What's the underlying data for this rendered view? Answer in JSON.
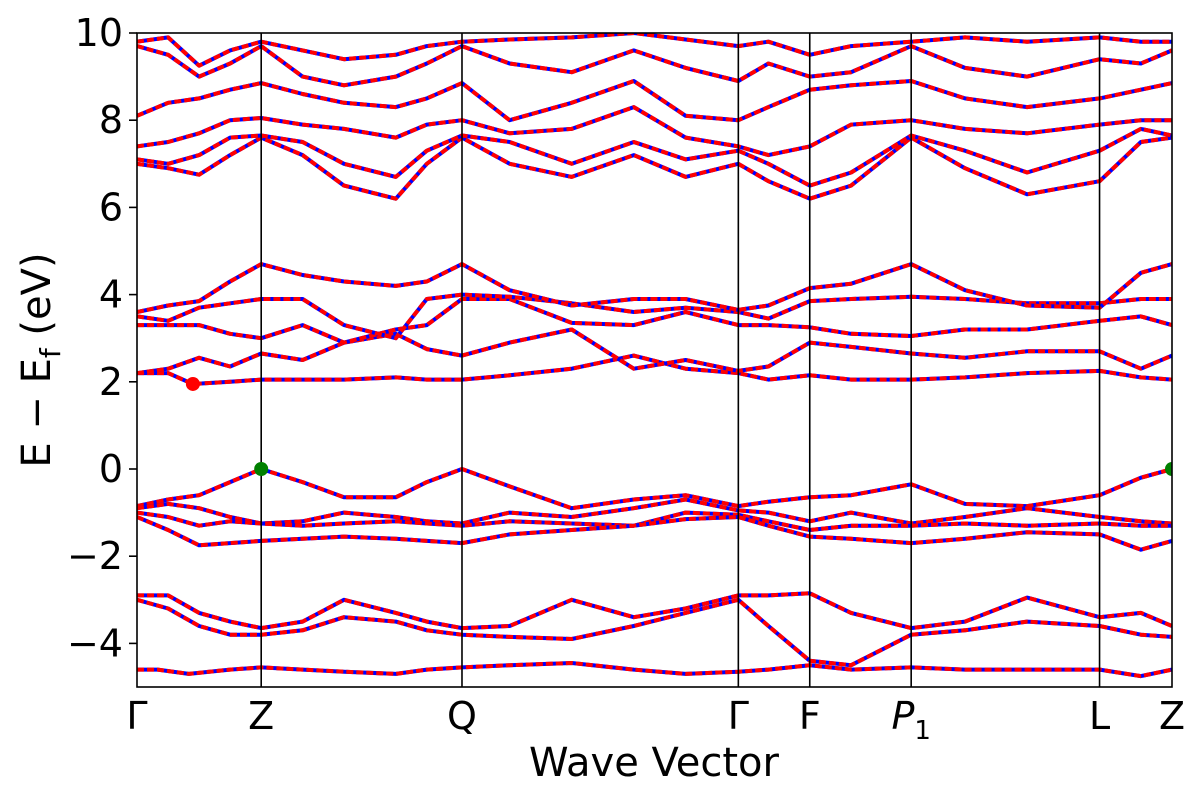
{
  "chart_data": {
    "type": "line",
    "title": "",
    "xlabel": "Wave Vector",
    "ylabel": "E − E_f (eV)",
    "ylabel_main": "E  −  E",
    "ylabel_sub": "f",
    "ylabel_tail": " (eV)",
    "ylim": [
      -5,
      10
    ],
    "yticks": [
      -4,
      -2,
      0,
      2,
      4,
      6,
      8,
      10
    ],
    "ytick_labels": [
      "−4",
      "−2",
      "0",
      "2",
      "4",
      "6",
      "8",
      "10"
    ],
    "high_symmetry_points": [
      {
        "label": "Γ",
        "sub": "",
        "k": 0.0
      },
      {
        "label": "Z",
        "sub": "",
        "k": 0.12
      },
      {
        "label": "Q",
        "sub": "",
        "k": 0.314
      },
      {
        "label": "Γ",
        "sub": "",
        "k": 0.581
      },
      {
        "label": "F",
        "sub": "",
        "k": 0.65
      },
      {
        "label": "P",
        "sub": "1",
        "k": 0.748
      },
      {
        "label": "L",
        "sub": "",
        "k": 0.93
      },
      {
        "label": "Z",
        "sub": "",
        "k": 1.0
      }
    ],
    "line_styles": {
      "band_color": "#ff0000",
      "overlay_color": "#0000ff"
    },
    "markers": [
      {
        "name": "CBM",
        "k": 0.054,
        "e": 1.95,
        "color": "#ff0000"
      },
      {
        "name": "VBM",
        "k": 0.12,
        "e": 0.0,
        "color": "#008000"
      },
      {
        "name": "VBM",
        "k": 1.0,
        "e": 0.0,
        "color": "#008000"
      }
    ],
    "bands": [
      {
        "k": [
          0.0,
          0.02,
          0.05,
          0.09,
          0.12,
          0.16,
          0.2,
          0.25,
          0.28,
          0.314,
          0.36,
          0.42,
          0.48,
          0.53,
          0.581,
          0.61,
          0.65,
          0.69,
          0.748,
          0.8,
          0.86,
          0.93,
          0.97,
          1.0
        ],
        "e": [
          -4.6,
          -4.6,
          -4.7,
          -4.6,
          -4.55,
          -4.6,
          -4.65,
          -4.7,
          -4.6,
          -4.55,
          -4.5,
          -4.45,
          -4.6,
          -4.7,
          -4.65,
          -4.6,
          -4.5,
          -4.6,
          -4.55,
          -4.6,
          -4.6,
          -4.6,
          -4.75,
          -4.6
        ]
      },
      {
        "k": [
          0.0,
          0.03,
          0.06,
          0.09,
          0.12,
          0.16,
          0.2,
          0.25,
          0.28,
          0.314,
          0.36,
          0.42,
          0.48,
          0.53,
          0.581,
          0.61,
          0.65,
          0.69,
          0.748,
          0.8,
          0.86,
          0.93,
          0.97,
          1.0
        ],
        "e": [
          -2.9,
          -2.9,
          -3.3,
          -3.5,
          -3.65,
          -3.5,
          -3.0,
          -3.3,
          -3.5,
          -3.65,
          -3.6,
          -3.0,
          -3.4,
          -3.2,
          -2.9,
          -2.9,
          -2.85,
          -3.3,
          -3.65,
          -3.5,
          -2.95,
          -3.4,
          -3.3,
          -3.6
        ]
      },
      {
        "k": [
          0.0,
          0.03,
          0.06,
          0.09,
          0.12,
          0.16,
          0.2,
          0.25,
          0.28,
          0.314,
          0.36,
          0.42,
          0.48,
          0.53,
          0.581,
          0.61,
          0.65,
          0.69,
          0.748,
          0.8,
          0.86,
          0.93,
          0.97,
          1.0
        ],
        "e": [
          -3.0,
          -3.2,
          -3.6,
          -3.8,
          -3.8,
          -3.7,
          -3.4,
          -3.5,
          -3.7,
          -3.8,
          -3.85,
          -3.9,
          -3.6,
          -3.3,
          -3.0,
          -3.6,
          -4.4,
          -4.5,
          -3.8,
          -3.7,
          -3.5,
          -3.6,
          -3.8,
          -3.85
        ]
      },
      {
        "k": [
          0.0,
          0.03,
          0.06,
          0.09,
          0.12,
          0.16,
          0.2,
          0.25,
          0.28,
          0.314,
          0.36,
          0.42,
          0.48,
          0.53,
          0.581,
          0.61,
          0.65,
          0.69,
          0.748,
          0.8,
          0.86,
          0.93,
          0.97,
          1.0
        ],
        "e": [
          -0.85,
          -0.7,
          -0.6,
          -0.3,
          0.0,
          -0.3,
          -0.65,
          -0.65,
          -0.3,
          0.0,
          -0.4,
          -0.9,
          -0.7,
          -0.6,
          -0.85,
          -0.75,
          -0.65,
          -0.6,
          -0.35,
          -0.8,
          -0.85,
          -0.6,
          -0.2,
          0.0
        ]
      },
      {
        "k": [
          0.0,
          0.03,
          0.06,
          0.09,
          0.12,
          0.16,
          0.2,
          0.25,
          0.28,
          0.314,
          0.36,
          0.42,
          0.48,
          0.53,
          0.581,
          0.61,
          0.65,
          0.69,
          0.748,
          0.8,
          0.86,
          0.93,
          0.97,
          1.0
        ],
        "e": [
          -0.9,
          -0.8,
          -0.9,
          -1.1,
          -1.25,
          -1.2,
          -1.0,
          -1.1,
          -1.2,
          -1.25,
          -1.0,
          -1.1,
          -0.9,
          -0.7,
          -0.95,
          -1.0,
          -1.2,
          -1.0,
          -1.25,
          -1.1,
          -0.9,
          -1.1,
          -1.2,
          -1.25
        ]
      },
      {
        "k": [
          0.0,
          0.03,
          0.06,
          0.09,
          0.12,
          0.16,
          0.2,
          0.25,
          0.28,
          0.314,
          0.36,
          0.42,
          0.48,
          0.53,
          0.581,
          0.61,
          0.65,
          0.69,
          0.748,
          0.8,
          0.86,
          0.93,
          0.97,
          1.0
        ],
        "e": [
          -1.0,
          -1.1,
          -1.3,
          -1.2,
          -1.25,
          -1.3,
          -1.25,
          -1.2,
          -1.25,
          -1.3,
          -1.2,
          -1.25,
          -1.3,
          -1.0,
          -1.05,
          -1.2,
          -1.4,
          -1.3,
          -1.3,
          -1.25,
          -1.3,
          -1.25,
          -1.3,
          -1.3
        ]
      },
      {
        "k": [
          0.0,
          0.03,
          0.06,
          0.09,
          0.12,
          0.16,
          0.2,
          0.25,
          0.28,
          0.314,
          0.36,
          0.42,
          0.48,
          0.53,
          0.581,
          0.61,
          0.65,
          0.69,
          0.748,
          0.8,
          0.86,
          0.93,
          0.97,
          1.0
        ],
        "e": [
          -1.1,
          -1.4,
          -1.75,
          -1.7,
          -1.65,
          -1.6,
          -1.55,
          -1.6,
          -1.65,
          -1.7,
          -1.5,
          -1.4,
          -1.3,
          -1.15,
          -1.1,
          -1.3,
          -1.55,
          -1.6,
          -1.7,
          -1.6,
          -1.45,
          -1.5,
          -1.85,
          -1.65
        ]
      },
      {
        "k": [
          0.0,
          0.03,
          0.054,
          0.09,
          0.12,
          0.16,
          0.2,
          0.25,
          0.28,
          0.314,
          0.36,
          0.42,
          0.48,
          0.53,
          0.581,
          0.61,
          0.65,
          0.69,
          0.748,
          0.8,
          0.86,
          0.93,
          0.97,
          1.0
        ],
        "e": [
          2.2,
          2.2,
          1.95,
          2.0,
          2.05,
          2.05,
          2.05,
          2.1,
          2.05,
          2.05,
          2.15,
          2.3,
          2.6,
          2.3,
          2.2,
          2.05,
          2.15,
          2.05,
          2.05,
          2.1,
          2.2,
          2.25,
          2.1,
          2.05
        ]
      },
      {
        "k": [
          0.0,
          0.03,
          0.06,
          0.09,
          0.12,
          0.16,
          0.2,
          0.25,
          0.28,
          0.314,
          0.36,
          0.42,
          0.48,
          0.53,
          0.581,
          0.61,
          0.65,
          0.69,
          0.748,
          0.8,
          0.86,
          0.93,
          0.97,
          1.0
        ],
        "e": [
          2.2,
          2.3,
          2.55,
          2.35,
          2.65,
          2.5,
          2.9,
          3.1,
          2.75,
          2.6,
          2.9,
          3.2,
          2.3,
          2.5,
          2.25,
          2.35,
          2.9,
          2.8,
          2.65,
          2.55,
          2.7,
          2.7,
          2.3,
          2.6
        ]
      },
      {
        "k": [
          0.0,
          0.03,
          0.06,
          0.09,
          0.12,
          0.16,
          0.2,
          0.25,
          0.28,
          0.314,
          0.36,
          0.42,
          0.48,
          0.53,
          0.581,
          0.61,
          0.65,
          0.69,
          0.748,
          0.8,
          0.86,
          0.93,
          0.97,
          1.0
        ],
        "e": [
          3.3,
          3.3,
          3.3,
          3.1,
          3.0,
          3.3,
          2.9,
          3.2,
          3.3,
          3.9,
          3.9,
          3.35,
          3.3,
          3.6,
          3.3,
          3.3,
          3.25,
          3.1,
          3.05,
          3.2,
          3.2,
          3.4,
          3.5,
          3.3
        ]
      },
      {
        "k": [
          0.0,
          0.03,
          0.06,
          0.09,
          0.12,
          0.16,
          0.2,
          0.25,
          0.28,
          0.314,
          0.36,
          0.42,
          0.48,
          0.53,
          0.581,
          0.61,
          0.65,
          0.69,
          0.748,
          0.8,
          0.86,
          0.93,
          0.97,
          1.0
        ],
        "e": [
          3.5,
          3.4,
          3.7,
          3.8,
          3.9,
          3.9,
          3.3,
          3.0,
          3.9,
          4.0,
          3.95,
          3.8,
          3.6,
          3.7,
          3.6,
          3.45,
          3.85,
          3.9,
          3.95,
          3.9,
          3.8,
          3.8,
          3.9,
          3.9
        ]
      },
      {
        "k": [
          0.0,
          0.03,
          0.06,
          0.09,
          0.12,
          0.16,
          0.2,
          0.25,
          0.28,
          0.314,
          0.36,
          0.42,
          0.48,
          0.53,
          0.581,
          0.61,
          0.65,
          0.69,
          0.748,
          0.8,
          0.86,
          0.93,
          0.97,
          1.0
        ],
        "e": [
          3.6,
          3.75,
          3.85,
          4.3,
          4.7,
          4.45,
          4.3,
          4.2,
          4.3,
          4.7,
          4.1,
          3.75,
          3.9,
          3.9,
          3.65,
          3.75,
          4.15,
          4.25,
          4.7,
          4.1,
          3.75,
          3.7,
          4.5,
          4.7
        ]
      },
      {
        "k": [
          0.0,
          0.03,
          0.06,
          0.09,
          0.12,
          0.16,
          0.2,
          0.25,
          0.28,
          0.314,
          0.36,
          0.42,
          0.48,
          0.53,
          0.581,
          0.61,
          0.65,
          0.69,
          0.748,
          0.8,
          0.86,
          0.93,
          0.97,
          1.0
        ],
        "e": [
          7.0,
          6.9,
          6.75,
          7.2,
          7.6,
          7.2,
          6.5,
          6.2,
          7.0,
          7.6,
          7.0,
          6.7,
          7.2,
          6.7,
          7.0,
          6.6,
          6.2,
          6.5,
          7.6,
          6.9,
          6.3,
          6.6,
          7.5,
          7.6
        ]
      },
      {
        "k": [
          0.0,
          0.03,
          0.06,
          0.09,
          0.12,
          0.16,
          0.2,
          0.25,
          0.28,
          0.314,
          0.36,
          0.42,
          0.48,
          0.53,
          0.581,
          0.61,
          0.65,
          0.69,
          0.748,
          0.8,
          0.86,
          0.93,
          0.97,
          1.0
        ],
        "e": [
          7.1,
          7.0,
          7.2,
          7.6,
          7.65,
          7.5,
          7.0,
          6.7,
          7.3,
          7.65,
          7.5,
          7.0,
          7.5,
          7.1,
          7.3,
          7.0,
          6.5,
          6.8,
          7.65,
          7.3,
          6.8,
          7.3,
          7.8,
          7.65
        ]
      },
      {
        "k": [
          0.0,
          0.03,
          0.06,
          0.09,
          0.12,
          0.16,
          0.2,
          0.25,
          0.28,
          0.314,
          0.36,
          0.42,
          0.48,
          0.53,
          0.581,
          0.61,
          0.65,
          0.69,
          0.748,
          0.8,
          0.86,
          0.93,
          0.97,
          1.0
        ],
        "e": [
          7.4,
          7.5,
          7.7,
          8.0,
          8.05,
          7.9,
          7.8,
          7.6,
          7.9,
          8.0,
          7.7,
          7.8,
          8.3,
          7.6,
          7.4,
          7.2,
          7.4,
          7.9,
          8.0,
          7.8,
          7.7,
          7.9,
          8.0,
          8.0
        ]
      },
      {
        "k": [
          0.0,
          0.03,
          0.06,
          0.09,
          0.12,
          0.16,
          0.2,
          0.25,
          0.28,
          0.314,
          0.36,
          0.42,
          0.48,
          0.53,
          0.581,
          0.61,
          0.65,
          0.69,
          0.748,
          0.8,
          0.86,
          0.93,
          0.97,
          1.0
        ],
        "e": [
          8.1,
          8.4,
          8.5,
          8.7,
          8.85,
          8.6,
          8.4,
          8.3,
          8.5,
          8.85,
          8.0,
          8.4,
          8.9,
          8.1,
          8.0,
          8.3,
          8.7,
          8.8,
          8.9,
          8.5,
          8.3,
          8.5,
          8.7,
          8.85
        ]
      },
      {
        "k": [
          0.0,
          0.03,
          0.06,
          0.09,
          0.12,
          0.16,
          0.2,
          0.25,
          0.28,
          0.314,
          0.36,
          0.42,
          0.48,
          0.53,
          0.581,
          0.61,
          0.65,
          0.69,
          0.748,
          0.8,
          0.86,
          0.93,
          0.97,
          1.0
        ],
        "e": [
          9.7,
          9.5,
          9.0,
          9.3,
          9.7,
          9.0,
          8.8,
          9.0,
          9.3,
          9.7,
          9.3,
          9.1,
          9.6,
          9.2,
          8.9,
          9.3,
          9.0,
          9.1,
          9.7,
          9.2,
          9.0,
          9.4,
          9.3,
          9.6
        ]
      },
      {
        "k": [
          0.0,
          0.03,
          0.06,
          0.09,
          0.12,
          0.16,
          0.2,
          0.25,
          0.28,
          0.314,
          0.36,
          0.42,
          0.48,
          0.53,
          0.581,
          0.61,
          0.65,
          0.69,
          0.748,
          0.8,
          0.86,
          0.93,
          0.97,
          1.0
        ],
        "e": [
          9.8,
          9.9,
          9.25,
          9.6,
          9.8,
          9.6,
          9.4,
          9.5,
          9.7,
          9.8,
          9.85,
          9.9,
          10.0,
          9.85,
          9.7,
          9.8,
          9.5,
          9.7,
          9.8,
          9.9,
          9.8,
          9.9,
          9.8,
          9.8
        ]
      }
    ]
  }
}
